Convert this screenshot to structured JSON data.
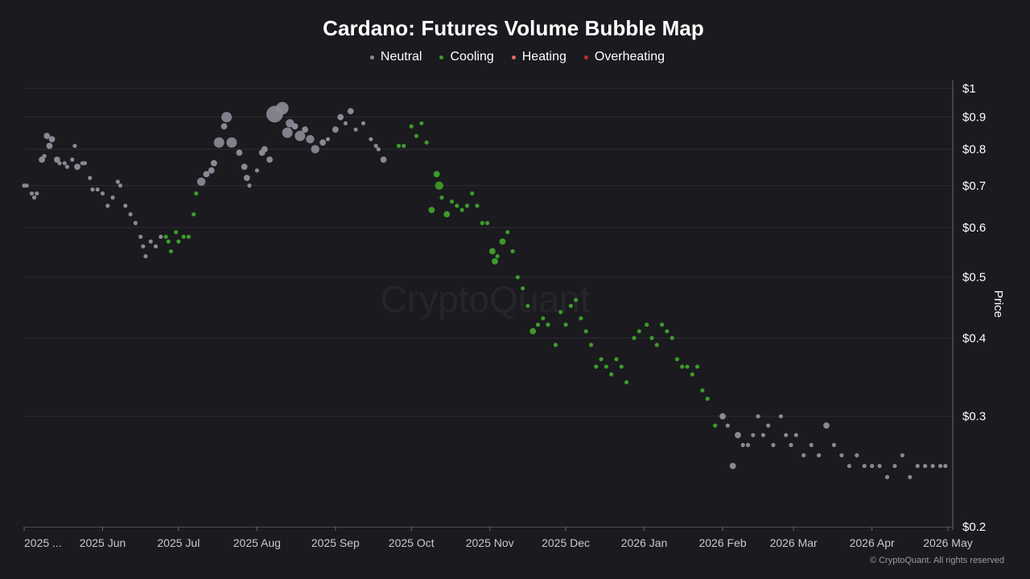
{
  "chart_data": {
    "type": "scatter",
    "title": "Cardano: Futures Volume Bubble Map",
    "ylabel": "Price",
    "y_scale": "log",
    "ylim": [
      0.2,
      1.0
    ],
    "y_ticks": [
      {
        "value": 1.0,
        "label": "$1"
      },
      {
        "value": 0.9,
        "label": "$0.9"
      },
      {
        "value": 0.8,
        "label": "$0.8"
      },
      {
        "value": 0.7,
        "label": "$0.7"
      },
      {
        "value": 0.6,
        "label": "$0.6"
      },
      {
        "value": 0.5,
        "label": "$0.5"
      },
      {
        "value": 0.4,
        "label": "$0.4"
      },
      {
        "value": 0.3,
        "label": "$0.3"
      },
      {
        "value": 0.2,
        "label": "$0.2"
      }
    ],
    "xlim": [
      "2025-05-01",
      "2026-05-01"
    ],
    "x_ticks": [
      {
        "date": "2025-05-01",
        "label": "2025 ..."
      },
      {
        "date": "2025-06-01",
        "label": "2025 Jun"
      },
      {
        "date": "2025-07-01",
        "label": "2025 Jul"
      },
      {
        "date": "2025-08-01",
        "label": "2025 Aug"
      },
      {
        "date": "2025-09-01",
        "label": "2025 Sep"
      },
      {
        "date": "2025-10-01",
        "label": "2025 Oct"
      },
      {
        "date": "2025-11-01",
        "label": "2025 Nov"
      },
      {
        "date": "2025-12-01",
        "label": "2025 Dec"
      },
      {
        "date": "2026-01-01",
        "label": "2026 Jan"
      },
      {
        "date": "2026-02-01",
        "label": "2026 Feb"
      },
      {
        "date": "2026-03-01",
        "label": "2026 Mar"
      },
      {
        "date": "2026-04-01",
        "label": "2026 Apr"
      },
      {
        "date": "2026-05-01",
        "label": "2026 May"
      }
    ],
    "grid": true,
    "legend_position": "top-center",
    "watermark": "CryptoQuant",
    "copyright": "© CryptoQuant. All rights reserved",
    "series": [
      {
        "name": "Neutral",
        "color": "#8a8a96",
        "points": [
          [
            "2025-05-01",
            0.7,
            1
          ],
          [
            "2025-05-02",
            0.7,
            1
          ],
          [
            "2025-05-04",
            0.68,
            1
          ],
          [
            "2025-05-05",
            0.67,
            1
          ],
          [
            "2025-05-06",
            0.68,
            1
          ],
          [
            "2025-05-08",
            0.77,
            1.5
          ],
          [
            "2025-05-09",
            0.78,
            1
          ],
          [
            "2025-05-10",
            0.84,
            1.5
          ],
          [
            "2025-05-11",
            0.81,
            1.5
          ],
          [
            "2025-05-12",
            0.83,
            1.5
          ],
          [
            "2025-05-14",
            0.77,
            1.5
          ],
          [
            "2025-05-15",
            0.76,
            1
          ],
          [
            "2025-05-17",
            0.76,
            1
          ],
          [
            "2025-05-18",
            0.75,
            1
          ],
          [
            "2025-05-20",
            0.77,
            1
          ],
          [
            "2025-05-21",
            0.81,
            1
          ],
          [
            "2025-05-22",
            0.75,
            1.5
          ],
          [
            "2025-05-24",
            0.76,
            1
          ],
          [
            "2025-05-25",
            0.76,
            1
          ],
          [
            "2025-05-27",
            0.72,
            1
          ],
          [
            "2025-05-28",
            0.69,
            1
          ],
          [
            "2025-05-30",
            0.69,
            1
          ],
          [
            "2025-06-01",
            0.68,
            1
          ],
          [
            "2025-06-03",
            0.65,
            1
          ],
          [
            "2025-06-05",
            0.67,
            1
          ],
          [
            "2025-06-07",
            0.71,
            1
          ],
          [
            "2025-06-08",
            0.7,
            1
          ],
          [
            "2025-06-10",
            0.65,
            1
          ],
          [
            "2025-06-12",
            0.63,
            1
          ],
          [
            "2025-06-14",
            0.61,
            1
          ],
          [
            "2025-06-16",
            0.58,
            1
          ],
          [
            "2025-06-17",
            0.56,
            1
          ],
          [
            "2025-06-18",
            0.54,
            1
          ],
          [
            "2025-06-20",
            0.57,
            1
          ],
          [
            "2025-06-22",
            0.56,
            1
          ],
          [
            "2025-06-24",
            0.58,
            1
          ],
          [
            "2025-07-10",
            0.71,
            2
          ],
          [
            "2025-07-12",
            0.73,
            1.5
          ],
          [
            "2025-07-14",
            0.74,
            1.5
          ],
          [
            "2025-07-15",
            0.76,
            1.5
          ],
          [
            "2025-07-17",
            0.82,
            2.5
          ],
          [
            "2025-07-19",
            0.87,
            1.5
          ],
          [
            "2025-07-20",
            0.9,
            2.5
          ],
          [
            "2025-07-22",
            0.82,
            2.5
          ],
          [
            "2025-07-25",
            0.79,
            1.5
          ],
          [
            "2025-07-27",
            0.75,
            1.5
          ],
          [
            "2025-07-28",
            0.72,
            1.5
          ],
          [
            "2025-07-29",
            0.7,
            1
          ],
          [
            "2025-08-01",
            0.74,
            1
          ],
          [
            "2025-08-03",
            0.79,
            1.5
          ],
          [
            "2025-08-04",
            0.8,
            1.5
          ],
          [
            "2025-08-06",
            0.77,
            1.5
          ],
          [
            "2025-08-08",
            0.91,
            4
          ],
          [
            "2025-08-11",
            0.93,
            3
          ],
          [
            "2025-08-13",
            0.85,
            2.5
          ],
          [
            "2025-08-14",
            0.88,
            2
          ],
          [
            "2025-08-16",
            0.87,
            1.5
          ],
          [
            "2025-08-18",
            0.84,
            2.5
          ],
          [
            "2025-08-20",
            0.86,
            1.5
          ],
          [
            "2025-08-22",
            0.83,
            2
          ],
          [
            "2025-08-24",
            0.8,
            2
          ],
          [
            "2025-08-27",
            0.82,
            1.5
          ],
          [
            "2025-08-29",
            0.83,
            1
          ],
          [
            "2025-09-01",
            0.86,
            1.5
          ],
          [
            "2025-09-03",
            0.9,
            1.5
          ],
          [
            "2025-09-05",
            0.88,
            1
          ],
          [
            "2025-09-07",
            0.92,
            1.5
          ],
          [
            "2025-09-09",
            0.86,
            1
          ],
          [
            "2025-09-12",
            0.88,
            1
          ],
          [
            "2025-09-15",
            0.83,
            1
          ],
          [
            "2025-09-17",
            0.81,
            1
          ],
          [
            "2025-09-18",
            0.8,
            1
          ],
          [
            "2025-09-20",
            0.77,
            1.5
          ],
          [
            "2026-02-01",
            0.3,
            1.5
          ],
          [
            "2026-02-03",
            0.29,
            1
          ],
          [
            "2026-02-05",
            0.25,
            1.5
          ],
          [
            "2026-02-07",
            0.28,
            1.5
          ],
          [
            "2026-02-09",
            0.27,
            1
          ],
          [
            "2026-02-11",
            0.27,
            1
          ],
          [
            "2026-02-13",
            0.28,
            1
          ],
          [
            "2026-02-15",
            0.3,
            1
          ],
          [
            "2026-02-17",
            0.28,
            1
          ],
          [
            "2026-02-19",
            0.29,
            1
          ],
          [
            "2026-02-21",
            0.27,
            1
          ],
          [
            "2026-02-24",
            0.3,
            1
          ],
          [
            "2026-02-26",
            0.28,
            1
          ],
          [
            "2026-02-28",
            0.27,
            1
          ],
          [
            "2026-03-02",
            0.28,
            1
          ],
          [
            "2026-03-05",
            0.26,
            1
          ],
          [
            "2026-03-08",
            0.27,
            1
          ],
          [
            "2026-03-11",
            0.26,
            1
          ],
          [
            "2026-03-14",
            0.29,
            1.5
          ],
          [
            "2026-03-17",
            0.27,
            1
          ],
          [
            "2026-03-20",
            0.26,
            1
          ],
          [
            "2026-03-23",
            0.25,
            1
          ],
          [
            "2026-03-26",
            0.26,
            1
          ],
          [
            "2026-03-29",
            0.25,
            1
          ],
          [
            "2026-04-01",
            0.25,
            1
          ],
          [
            "2026-04-04",
            0.25,
            1
          ],
          [
            "2026-04-07",
            0.24,
            1
          ],
          [
            "2026-04-10",
            0.25,
            1
          ],
          [
            "2026-04-13",
            0.26,
            1
          ],
          [
            "2026-04-16",
            0.24,
            1
          ],
          [
            "2026-04-19",
            0.25,
            1
          ],
          [
            "2026-04-22",
            0.25,
            1
          ],
          [
            "2026-04-25",
            0.25,
            1
          ],
          [
            "2026-04-28",
            0.25,
            1
          ],
          [
            "2026-04-30",
            0.25,
            1
          ]
        ]
      },
      {
        "name": "Cooling",
        "color": "#3e9b2a",
        "points": [
          [
            "2025-06-26",
            0.58,
            1
          ],
          [
            "2025-06-27",
            0.57,
            1
          ],
          [
            "2025-06-28",
            0.55,
            1
          ],
          [
            "2025-06-30",
            0.59,
            1
          ],
          [
            "2025-07-01",
            0.57,
            1
          ],
          [
            "2025-07-03",
            0.58,
            1
          ],
          [
            "2025-07-05",
            0.58,
            1
          ],
          [
            "2025-07-07",
            0.63,
            1
          ],
          [
            "2025-07-08",
            0.68,
            1
          ],
          [
            "2025-09-26",
            0.81,
            1
          ],
          [
            "2025-09-28",
            0.81,
            1
          ],
          [
            "2025-10-01",
            0.87,
            1
          ],
          [
            "2025-10-03",
            0.84,
            1
          ],
          [
            "2025-10-05",
            0.88,
            1
          ],
          [
            "2025-10-07",
            0.82,
            1
          ],
          [
            "2025-10-09",
            0.64,
            1.5
          ],
          [
            "2025-10-11",
            0.73,
            1.5
          ],
          [
            "2025-10-12",
            0.7,
            2
          ],
          [
            "2025-10-13",
            0.67,
            1
          ],
          [
            "2025-10-15",
            0.63,
            1.5
          ],
          [
            "2025-10-17",
            0.66,
            1
          ],
          [
            "2025-10-19",
            0.65,
            1
          ],
          [
            "2025-10-21",
            0.64,
            1
          ],
          [
            "2025-10-23",
            0.65,
            1
          ],
          [
            "2025-10-25",
            0.68,
            1
          ],
          [
            "2025-10-27",
            0.65,
            1
          ],
          [
            "2025-10-29",
            0.61,
            1
          ],
          [
            "2025-10-31",
            0.61,
            1
          ],
          [
            "2025-11-02",
            0.55,
            1.5
          ],
          [
            "2025-11-03",
            0.53,
            1.5
          ],
          [
            "2025-11-04",
            0.54,
            1
          ],
          [
            "2025-11-06",
            0.57,
            1.5
          ],
          [
            "2025-11-08",
            0.59,
            1
          ],
          [
            "2025-11-10",
            0.55,
            1
          ],
          [
            "2025-11-12",
            0.5,
            1
          ],
          [
            "2025-11-14",
            0.48,
            1
          ],
          [
            "2025-11-16",
            0.45,
            1
          ],
          [
            "2025-11-18",
            0.41,
            1.5
          ],
          [
            "2025-11-20",
            0.42,
            1
          ],
          [
            "2025-11-22",
            0.43,
            1
          ],
          [
            "2025-11-24",
            0.42,
            1
          ],
          [
            "2025-11-27",
            0.39,
            1
          ],
          [
            "2025-11-29",
            0.44,
            1
          ],
          [
            "2025-12-01",
            0.42,
            1
          ],
          [
            "2025-12-03",
            0.45,
            1
          ],
          [
            "2025-12-05",
            0.46,
            1
          ],
          [
            "2025-12-07",
            0.43,
            1
          ],
          [
            "2025-12-09",
            0.41,
            1
          ],
          [
            "2025-12-11",
            0.39,
            1
          ],
          [
            "2025-12-13",
            0.36,
            1
          ],
          [
            "2025-12-15",
            0.37,
            1
          ],
          [
            "2025-12-17",
            0.36,
            1
          ],
          [
            "2025-12-19",
            0.35,
            1
          ],
          [
            "2025-12-21",
            0.37,
            1
          ],
          [
            "2025-12-23",
            0.36,
            1
          ],
          [
            "2025-12-25",
            0.34,
            1
          ],
          [
            "2025-12-28",
            0.4,
            1
          ],
          [
            "2025-12-30",
            0.41,
            1
          ],
          [
            "2026-01-02",
            0.42,
            1
          ],
          [
            "2026-01-04",
            0.4,
            1
          ],
          [
            "2026-01-06",
            0.39,
            1
          ],
          [
            "2026-01-08",
            0.42,
            1
          ],
          [
            "2026-01-10",
            0.41,
            1
          ],
          [
            "2026-01-12",
            0.4,
            1
          ],
          [
            "2026-01-14",
            0.37,
            1
          ],
          [
            "2026-01-16",
            0.36,
            1
          ],
          [
            "2026-01-18",
            0.36,
            1
          ],
          [
            "2026-01-20",
            0.35,
            1
          ],
          [
            "2026-01-22",
            0.36,
            1
          ],
          [
            "2026-01-24",
            0.33,
            1
          ],
          [
            "2026-01-26",
            0.32,
            1
          ],
          [
            "2026-01-29",
            0.29,
            1
          ]
        ]
      },
      {
        "name": "Heating",
        "color": "#e06b6b",
        "points": []
      },
      {
        "name": "Overheating",
        "color": "#c0302f",
        "points": []
      }
    ]
  }
}
